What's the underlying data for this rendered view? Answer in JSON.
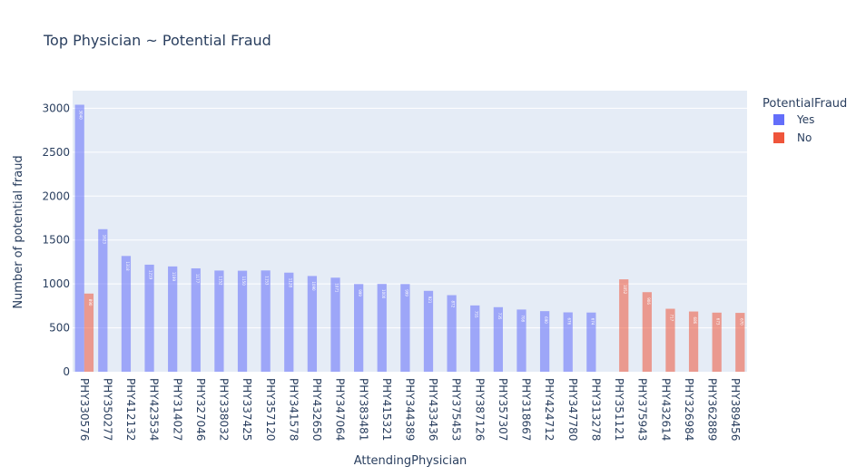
{
  "chart_data": {
    "type": "bar",
    "title": "Top Physician ~ Potential Fraud",
    "xlabel": "AttendingPhysician",
    "ylabel": "Number of potential fraud",
    "ylim": [
      0,
      3200
    ],
    "yticks": [
      0,
      500,
      1000,
      1500,
      2000,
      2500,
      3000
    ],
    "grid": true,
    "legend_title": "PotentialFraud",
    "legend_position": "top-right",
    "categories": [
      "PHY330576",
      "PHY350277",
      "PHY412132",
      "PHY423534",
      "PHY314027",
      "PHY327046",
      "PHY338032",
      "PHY337425",
      "PHY357120",
      "PHY341578",
      "PHY432650",
      "PHY347064",
      "PHY383481",
      "PHY415321",
      "PHY344389",
      "PHY433436",
      "PHY375453",
      "PHY387126",
      "PHY357307",
      "PHY318667",
      "PHY424712",
      "PHY347780",
      "PHY313278",
      "PHY351121",
      "PHY375943",
      "PHY432614",
      "PHY326984",
      "PHY362889",
      "PHY389456"
    ],
    "series": [
      {
        "name": "Yes",
        "color": "#636efa",
        "values": [
          3040,
          1623,
          1318,
          1219,
          1199,
          1177,
          1152,
          1150,
          1153,
          1128,
          1090,
          1071,
          999,
          1000,
          999,
          921,
          872,
          755,
          735,
          708,
          690,
          676,
          674,
          null,
          null,
          null,
          null,
          null,
          null
        ]
      },
      {
        "name": "No",
        "color": "#ef553b",
        "values": [
          890,
          null,
          null,
          null,
          null,
          null,
          null,
          null,
          null,
          null,
          null,
          null,
          null,
          null,
          null,
          null,
          null,
          null,
          null,
          null,
          null,
          null,
          null,
          1052,
          906,
          717,
          686,
          673,
          670
        ]
      }
    ]
  }
}
